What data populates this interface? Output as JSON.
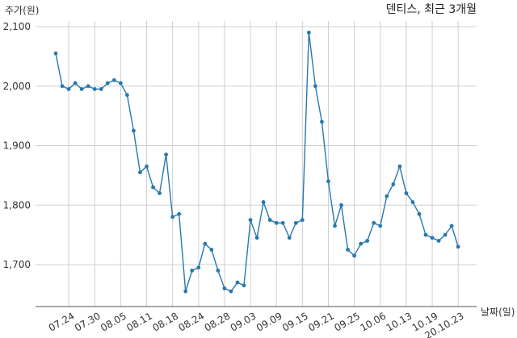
{
  "chart_data": {
    "type": "line",
    "title": "덴티스, 최근 3개월",
    "ylabel": "주가(원)",
    "xlabel": "날짜(일)",
    "ylim": [
      1640,
      2100
    ],
    "yticks": [
      1700,
      1800,
      1900,
      2000,
      2100
    ],
    "ytick_labels": [
      "1,700",
      "1,800",
      "1,900",
      "2,000",
      "2,100"
    ],
    "grid": true,
    "color": "#2878b0",
    "x_labels": [
      "07.24",
      "07.30",
      "08.05",
      "08.11",
      "08.18",
      "08.24",
      "08.28",
      "09.03",
      "09.09",
      "09.15",
      "09.21",
      "09.25",
      "10.06",
      "10.13",
      "10.19",
      "20.10.23"
    ],
    "x_label_positions": [
      2,
      6,
      10,
      14,
      18,
      22,
      26,
      30,
      34,
      38,
      42,
      46,
      50,
      54,
      58,
      62
    ],
    "series": [
      {
        "values": [
          2055,
          2000,
          1995,
          2005,
          1995,
          2000,
          1995,
          1995,
          2005,
          2010,
          2005,
          1985,
          1925,
          1855,
          1865,
          1830,
          1820,
          1885,
          1780,
          1785,
          1655,
          1690,
          1695,
          1735,
          1725,
          1690,
          1660,
          1655,
          1670,
          1665,
          1775,
          1745,
          1805,
          1775,
          1770,
          1770,
          1745,
          1770,
          1775,
          2090,
          2000,
          1940,
          1840,
          1765,
          1800,
          1725,
          1715,
          1735,
          1740,
          1770,
          1765,
          1815,
          1835,
          1865,
          1820,
          1805,
          1785,
          1750,
          1745,
          1740,
          1750,
          1765,
          1730
        ]
      }
    ]
  }
}
